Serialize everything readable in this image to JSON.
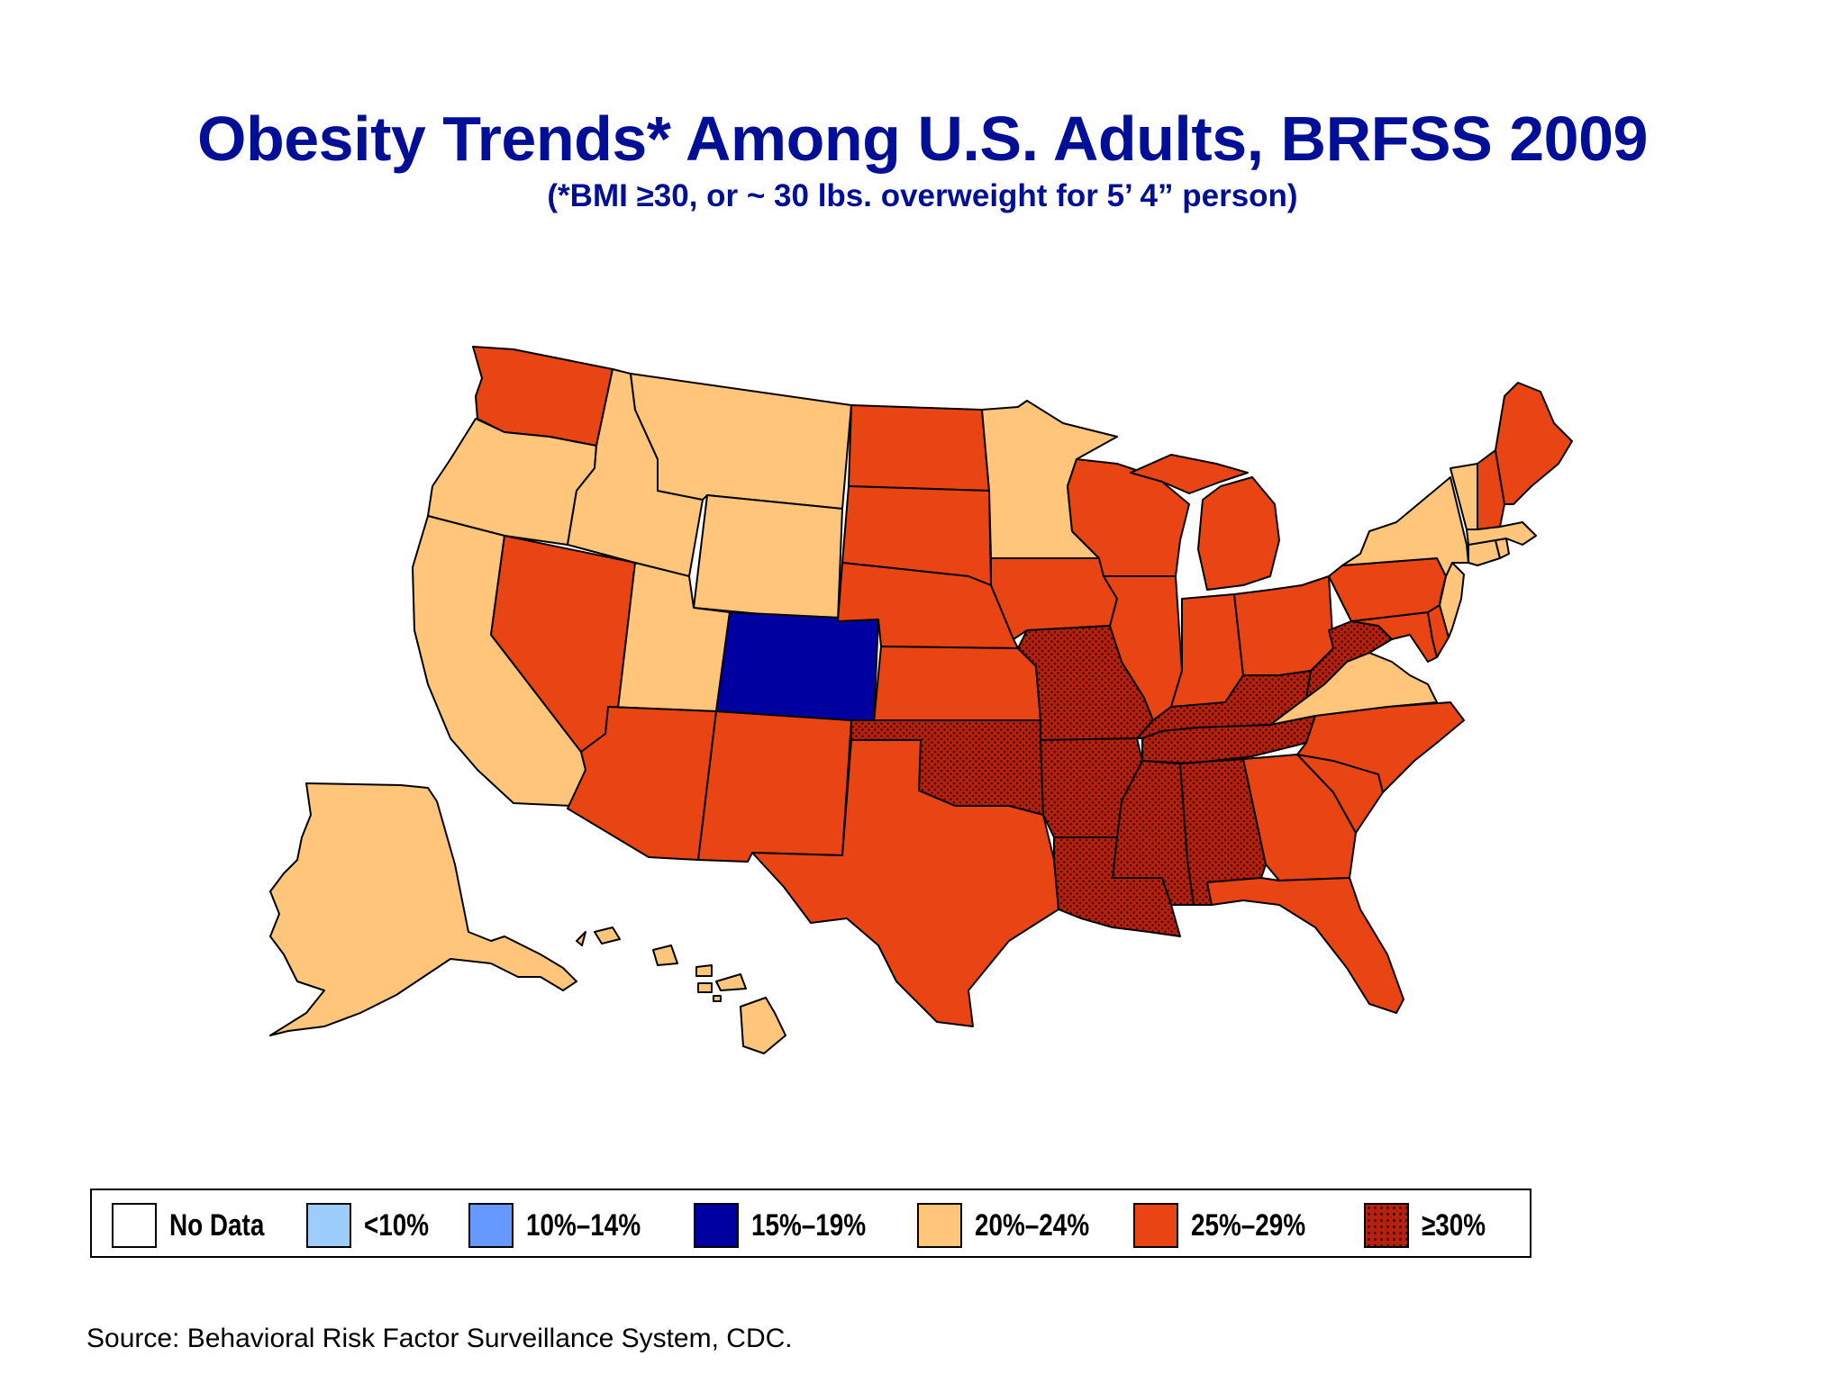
{
  "title": "Obesity Trends* Among U.S. Adults, BRFSS 2009",
  "subtitle": "(*BMI ≥30, or ~ 30 lbs. overweight for 5’ 4” person)",
  "legend": [
    {
      "key": "nodata",
      "label": "No Data",
      "color": "#ffffff",
      "pattern": false
    },
    {
      "key": "lt10",
      "label": "<10%",
      "color": "#9ccdfb",
      "pattern": false
    },
    {
      "key": "10_14",
      "label": "10%–14%",
      "color": "#6699ff",
      "pattern": false
    },
    {
      "key": "15_19",
      "label": "15%–19%",
      "color": "#0000a0",
      "pattern": false
    },
    {
      "key": "20_24",
      "label": "20%–24%",
      "color": "#fec57b",
      "pattern": false
    },
    {
      "key": "25_29",
      "label": "25%–29%",
      "color": "#e94514",
      "pattern": false
    },
    {
      "key": "gte30",
      "label": "≥30%",
      "color": "#b4220f",
      "pattern": true
    }
  ],
  "states": [
    {
      "name": "Washington",
      "category": "25_29"
    },
    {
      "name": "Oregon",
      "category": "20_24"
    },
    {
      "name": "California",
      "category": "20_24"
    },
    {
      "name": "Nevada",
      "category": "25_29"
    },
    {
      "name": "Idaho",
      "category": "20_24"
    },
    {
      "name": "Montana",
      "category": "20_24"
    },
    {
      "name": "Wyoming",
      "category": "20_24"
    },
    {
      "name": "Utah",
      "category": "20_24"
    },
    {
      "name": "Colorado",
      "category": "15_19"
    },
    {
      "name": "Arizona",
      "category": "25_29"
    },
    {
      "name": "New Mexico",
      "category": "25_29"
    },
    {
      "name": "North Dakota",
      "category": "25_29"
    },
    {
      "name": "South Dakota",
      "category": "25_29"
    },
    {
      "name": "Nebraska",
      "category": "25_29"
    },
    {
      "name": "Kansas",
      "category": "25_29"
    },
    {
      "name": "Oklahoma",
      "category": "gte30"
    },
    {
      "name": "Texas",
      "category": "25_29"
    },
    {
      "name": "Minnesota",
      "category": "20_24"
    },
    {
      "name": "Iowa",
      "category": "25_29"
    },
    {
      "name": "Missouri",
      "category": "gte30"
    },
    {
      "name": "Arkansas",
      "category": "gte30"
    },
    {
      "name": "Louisiana",
      "category": "gte30"
    },
    {
      "name": "Wisconsin",
      "category": "25_29"
    },
    {
      "name": "Illinois",
      "category": "25_29"
    },
    {
      "name": "Michigan",
      "category": "25_29"
    },
    {
      "name": "Indiana",
      "category": "25_29"
    },
    {
      "name": "Ohio",
      "category": "25_29"
    },
    {
      "name": "Kentucky",
      "category": "gte30"
    },
    {
      "name": "Tennessee",
      "category": "gte30"
    },
    {
      "name": "Mississippi",
      "category": "gte30"
    },
    {
      "name": "Alabama",
      "category": "gte30"
    },
    {
      "name": "Georgia",
      "category": "25_29"
    },
    {
      "name": "Florida",
      "category": "25_29"
    },
    {
      "name": "South Carolina",
      "category": "25_29"
    },
    {
      "name": "North Carolina",
      "category": "25_29"
    },
    {
      "name": "Virginia",
      "category": "20_24"
    },
    {
      "name": "West Virginia",
      "category": "gte30"
    },
    {
      "name": "Maryland",
      "category": "25_29"
    },
    {
      "name": "Delaware",
      "category": "25_29"
    },
    {
      "name": "Pennsylvania",
      "category": "25_29"
    },
    {
      "name": "New Jersey",
      "category": "20_24"
    },
    {
      "name": "New York",
      "category": "20_24"
    },
    {
      "name": "Connecticut",
      "category": "20_24"
    },
    {
      "name": "Rhode Island",
      "category": "20_24"
    },
    {
      "name": "Massachusetts",
      "category": "20_24"
    },
    {
      "name": "Vermont",
      "category": "20_24"
    },
    {
      "name": "New Hampshire",
      "category": "25_29"
    },
    {
      "name": "Maine",
      "category": "25_29"
    },
    {
      "name": "Alaska",
      "category": "20_24"
    },
    {
      "name": "Hawaii",
      "category": "20_24"
    }
  ],
  "source": "Source: Behavioral Risk Factor Surveillance System, CDC."
}
